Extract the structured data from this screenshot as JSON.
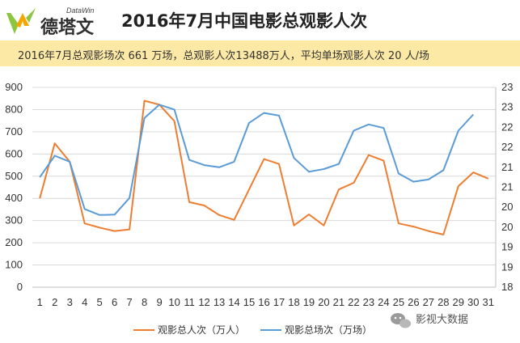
{
  "logo": {
    "cn": "德塔文",
    "en": "DataWin"
  },
  "chart_data": {
    "type": "line",
    "title": "2016年7月中国电影总观影人次",
    "subtitle": "2016年7月总观影场次 661 万场，总观影人次13488万人，平均单场观影人次 20 人/场",
    "x": [
      "1",
      "2",
      "3",
      "4",
      "5",
      "6",
      "7",
      "8",
      "9",
      "10",
      "11",
      "12",
      "13",
      "14",
      "15",
      "16",
      "17",
      "18",
      "19",
      "20",
      "21",
      "22",
      "23",
      "24",
      "25",
      "26",
      "27",
      "28",
      "29",
      "30",
      "31"
    ],
    "ylim_left": [
      0,
      900
    ],
    "yticks_left": [
      "0",
      "100",
      "200",
      "300",
      "400",
      "500",
      "600",
      "700",
      "800",
      "900"
    ],
    "ylim_right": [
      18,
      23
    ],
    "yticks_right": [
      "18",
      "19",
      "19",
      "20",
      "20",
      "21",
      "21",
      "22",
      "22",
      "23",
      "23"
    ],
    "grid": true,
    "legend_position": "bottom",
    "series": [
      {
        "name": "观影总人次（万人）",
        "axis": "left",
        "color": "#ed7d31",
        "values": [
          400,
          648,
          565,
          287,
          268,
          253,
          260,
          840,
          822,
          748,
          383,
          368,
          325,
          303,
          440,
          577,
          555,
          278,
          328,
          278,
          440,
          470,
          595,
          570,
          287,
          273,
          253,
          237,
          455,
          517,
          489
        ]
      },
      {
        "name": "观影总场次（万场）",
        "axis": "left",
        "color": "#5b9bd5",
        "values": [
          495,
          592,
          565,
          352,
          325,
          327,
          402,
          762,
          822,
          800,
          573,
          550,
          540,
          565,
          740,
          785,
          773,
          582,
          520,
          532,
          555,
          705,
          733,
          717,
          512,
          475,
          485,
          527,
          705,
          778,
          null
        ]
      }
    ]
  },
  "watermark": {
    "text": "影视大数据"
  }
}
